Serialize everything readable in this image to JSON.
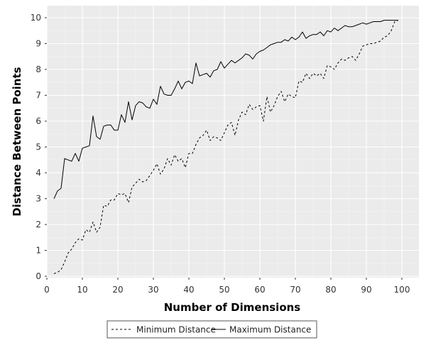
{
  "chart_data": {
    "type": "line",
    "xlabel": "Number of Dimensions",
    "ylabel": "Distance Between Points",
    "xlim": [
      0,
      100
    ],
    "ylim": [
      0,
      10
    ],
    "x_ticks": [
      "0",
      "10",
      "20",
      "30",
      "40",
      "50",
      "60",
      "70",
      "80",
      "90",
      "100"
    ],
    "y_ticks": [
      "0",
      "1",
      "2",
      "3",
      "4",
      "5",
      "6",
      "7",
      "8",
      "9",
      "10"
    ],
    "grid": true,
    "legend_position": "bottom",
    "x": [
      2,
      3,
      4,
      5,
      6,
      7,
      8,
      9,
      10,
      11,
      12,
      13,
      14,
      15,
      16,
      17,
      18,
      19,
      20,
      21,
      22,
      23,
      24,
      25,
      26,
      27,
      28,
      29,
      30,
      31,
      32,
      33,
      34,
      35,
      36,
      37,
      38,
      39,
      40,
      41,
      42,
      43,
      44,
      45,
      46,
      47,
      48,
      49,
      50,
      51,
      52,
      53,
      54,
      55,
      56,
      57,
      58,
      59,
      60,
      61,
      62,
      63,
      64,
      65,
      66,
      67,
      68,
      69,
      70,
      71,
      72,
      73,
      74,
      75,
      76,
      77,
      78,
      79,
      80,
      81,
      82,
      83,
      84,
      85,
      86,
      87,
      88,
      89,
      90,
      91,
      92,
      93,
      94,
      95,
      96,
      97,
      98,
      99
    ],
    "series": [
      {
        "name": "Minimum Distance",
        "line_style": "dashed",
        "values": [
          0.1,
          0.15,
          0.25,
          0.55,
          0.9,
          1.05,
          1.3,
          1.45,
          1.4,
          1.8,
          1.7,
          2.1,
          1.7,
          1.9,
          2.75,
          2.7,
          2.95,
          2.95,
          3.2,
          3.15,
          3.2,
          2.85,
          3.45,
          3.6,
          3.75,
          3.65,
          3.7,
          3.9,
          4.1,
          4.35,
          3.95,
          4.15,
          4.55,
          4.3,
          4.7,
          4.45,
          4.55,
          4.2,
          4.75,
          4.75,
          5.1,
          5.35,
          5.45,
          5.65,
          5.25,
          5.4,
          5.35,
          5.25,
          5.55,
          5.85,
          5.95,
          5.45,
          6.05,
          6.35,
          6.25,
          6.65,
          6.45,
          6.55,
          6.6,
          6.0,
          6.95,
          6.35,
          6.6,
          6.95,
          7.15,
          6.75,
          7.05,
          6.95,
          6.9,
          7.55,
          7.5,
          7.85,
          7.65,
          7.85,
          7.75,
          7.85,
          7.65,
          8.15,
          8.1,
          8.0,
          8.25,
          8.4,
          8.35,
          8.45,
          8.5,
          8.35,
          8.6,
          8.9,
          8.95,
          9.0,
          9.0,
          9.05,
          9.1,
          9.25,
          9.3,
          9.5,
          9.85,
          9.9
        ]
      },
      {
        "name": "Maximum Distance",
        "line_style": "solid",
        "values": [
          3.0,
          3.3,
          3.4,
          4.55,
          4.5,
          4.45,
          4.75,
          4.45,
          4.95,
          5.0,
          5.05,
          6.2,
          5.4,
          5.3,
          5.8,
          5.85,
          5.85,
          5.65,
          5.65,
          6.25,
          5.95,
          6.75,
          6.05,
          6.6,
          6.75,
          6.7,
          6.55,
          6.5,
          6.85,
          6.65,
          7.35,
          7.05,
          7.0,
          7.0,
          7.25,
          7.55,
          7.25,
          7.5,
          7.55,
          7.45,
          8.25,
          7.75,
          7.8,
          7.85,
          7.7,
          7.95,
          8.0,
          8.3,
          8.05,
          8.2,
          8.35,
          8.25,
          8.35,
          8.45,
          8.6,
          8.55,
          8.4,
          8.6,
          8.7,
          8.75,
          8.85,
          8.95,
          9.0,
          9.05,
          9.05,
          9.15,
          9.1,
          9.25,
          9.15,
          9.25,
          9.45,
          9.2,
          9.3,
          9.35,
          9.35,
          9.45,
          9.3,
          9.5,
          9.45,
          9.6,
          9.5,
          9.6,
          9.7,
          9.65,
          9.65,
          9.7,
          9.75,
          9.8,
          9.75,
          9.8,
          9.85,
          9.85,
          9.85,
          9.9,
          9.9,
          9.9,
          9.9,
          9.9
        ]
      }
    ]
  }
}
